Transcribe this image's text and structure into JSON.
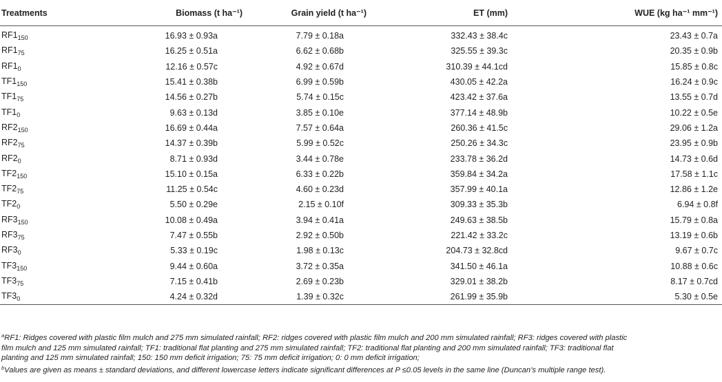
{
  "header": {
    "treatments": "Treatments",
    "biomass": "Biomass (t ha⁻¹)",
    "grain_yield": "Grain yield (t ha⁻¹)",
    "et": "ET (mm)",
    "wue": "WUE (kg ha⁻¹ mm⁻¹)"
  },
  "rows": [
    {
      "base": "RF1",
      "sub": "150",
      "biomass": "16.93 ± 0.93a",
      "grain": "7.79 ± 0.18a",
      "et": "332.43 ± 38.4c",
      "wue": "23.43 ± 0.7a"
    },
    {
      "base": "RF1",
      "sub": "75",
      "biomass": "16.25 ± 0.51a",
      "grain": "6.62 ± 0.68b",
      "et": "325.55 ± 39.3c",
      "wue": "20.35 ± 0.9b"
    },
    {
      "base": "RF1",
      "sub": "0",
      "biomass": "12.16 ± 0.57c",
      "grain": "4.92 ± 0.67d",
      "et": "310.39 ± 44.1cd",
      "wue": "15.85 ± 0.8c"
    },
    {
      "base": "TF1",
      "sub": "150",
      "biomass": "15.41 ± 0.38b",
      "grain": "6.99 ± 0.59b",
      "et": "430.05 ± 42.2a",
      "wue": "16.24 ± 0.9c"
    },
    {
      "base": "TF1",
      "sub": "75",
      "biomass": "14.56 ± 0.27b",
      "grain": "5.74 ± 0.15c",
      "et": "423.42 ± 37.6a",
      "wue": "13.55 ± 0.7d"
    },
    {
      "base": "TF1",
      "sub": "0",
      "biomass": "9.63 ± 0.13d",
      "grain": "3.85 ± 0.10e",
      "et": "377.14 ± 48.9b",
      "wue": "10.22 ± 0.5e"
    },
    {
      "base": "RF2",
      "sub": "150",
      "biomass": "16.69 ± 0.44a",
      "grain": "7.57 ± 0.64a",
      "et": "260.36 ± 41.5c",
      "wue": "29.06 ± 1.2a"
    },
    {
      "base": "RF2",
      "sub": "75",
      "biomass": "14.37 ± 0.39b",
      "grain": "5.99 ± 0.52c",
      "et": "250.26 ± 34.3c",
      "wue": "23.95 ± 0.9b"
    },
    {
      "base": "RF2",
      "sub": "0",
      "biomass": "8.71 ± 0.93d",
      "grain": "3.44 ± 0.78e",
      "et": "233.78 ± 36.2d",
      "wue": "14.73 ± 0.6d"
    },
    {
      "base": "TF2",
      "sub": "150",
      "biomass": "15.10 ± 0.15a",
      "grain": "6.33 ± 0.22b",
      "et": "359.84 ± 34.2a",
      "wue": "17.58 ± 1.1c"
    },
    {
      "base": "TF2",
      "sub": "75",
      "biomass": "11.25 ± 0.54c",
      "grain": "4.60 ± 0.23d",
      "et": "357.99 ± 40.1a",
      "wue": "12.86 ± 1.2e"
    },
    {
      "base": "TF2",
      "sub": "0",
      "biomass": "5.50 ± 0.29e",
      "grain": "2.15 ± 0.10f",
      "et": "309.33 ± 35.3b",
      "wue": "6.94 ± 0.8f"
    },
    {
      "base": "RF3",
      "sub": "150",
      "biomass": "10.08 ± 0.49a",
      "grain": "3.94 ± 0.41a",
      "et": "249.63 ± 38.5b",
      "wue": "15.79 ± 0.8a"
    },
    {
      "base": "RF3",
      "sub": "75",
      "biomass": "7.47 ± 0.55b",
      "grain": "2.92 ± 0.50b",
      "et": "221.42 ± 33.2c",
      "wue": "13.19 ± 0.6b"
    },
    {
      "base": "RF3",
      "sub": "0",
      "biomass": "5.33 ± 0.19c",
      "grain": "1.98 ± 0.13c",
      "et": "204.73 ± 32.8cd",
      "wue": "9.67 ± 0.7c"
    },
    {
      "base": "TF3",
      "sub": "150",
      "biomass": "9.44 ± 0.60a",
      "grain": "3.72 ± 0.35a",
      "et": "341.50 ± 46.1a",
      "wue": "10.88 ± 0.6c"
    },
    {
      "base": "TF3",
      "sub": "75",
      "biomass": "7.15 ± 0.41b",
      "grain": "2.69 ± 0.23b",
      "et": "329.01 ± 38.2b",
      "wue": "8.17 ± 0.7cd"
    },
    {
      "base": "TF3",
      "sub": "0",
      "biomass": "4.24 ± 0.32d",
      "grain": "1.39 ± 0.32c",
      "et": "261.99 ± 35.9b",
      "wue": "5.30 ± 0.5e"
    }
  ],
  "notes": {
    "a_marker": "a",
    "a_text_1": "RF1: Ridges covered with plastic film mulch and 275 mm simulated rainfall; RF2: ridges covered with plastic film mulch and 200 mm simulated rainfall; RF3: ridges covered with plastic",
    "a_text_2": "film mulch and 125 mm simulated rainfall; TF1: traditional flat planting and 275 mm simulated rainfall; TF2: traditional flat planting and 200 mm simulated rainfall; TF3: traditional flat",
    "a_text_3": "planting and 125 mm simulated rainfall; 150: 150 mm deficit irrigation; 75: 75 mm deficit irrigation; 0: 0 mm deficit irrigation;",
    "b_marker": "b",
    "b_text": "Values are given as means ± standard deviations, and different lowercase letters indicate significant differences at P ≤0.05 levels in the same line (Duncan’s multiple range test)."
  }
}
